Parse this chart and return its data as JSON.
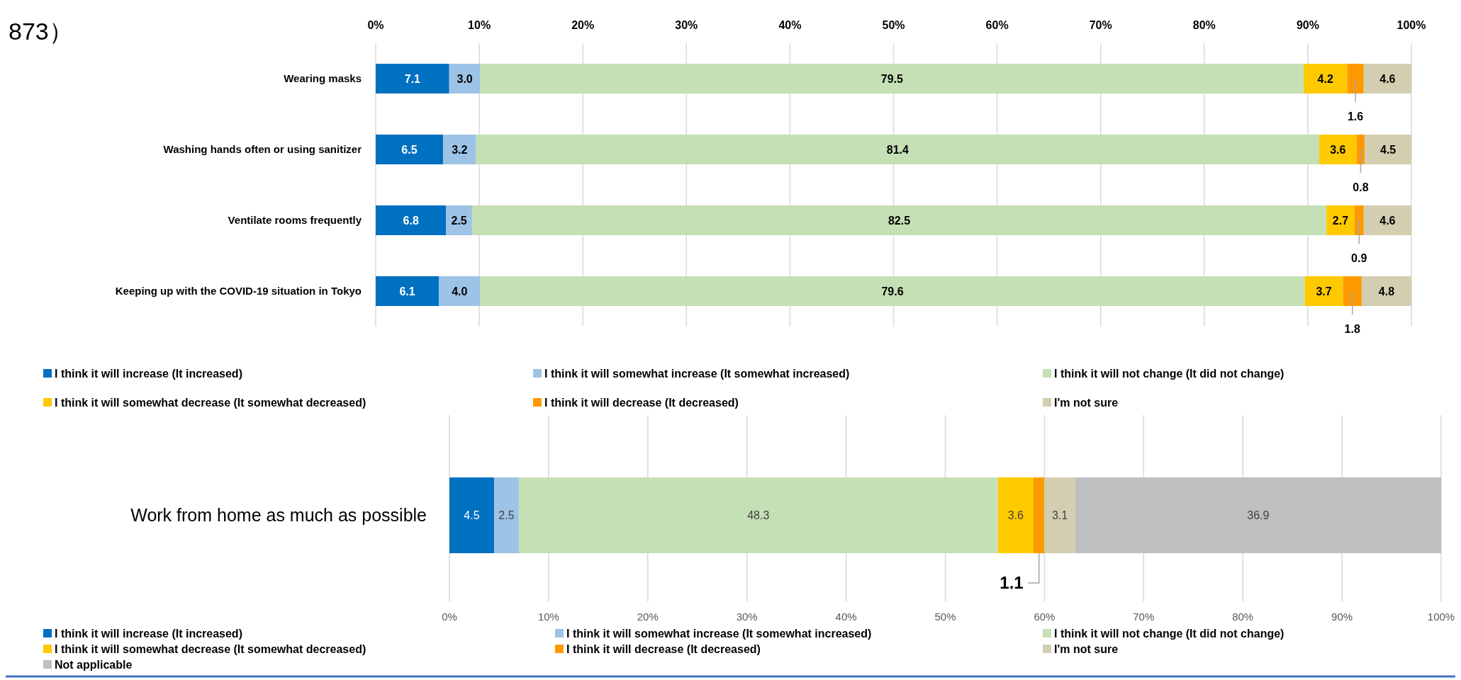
{
  "chart_data": [
    {
      "type": "bar",
      "title": "873）",
      "orientation": "horizontal",
      "stacked": true,
      "grid": "x",
      "legend": "bottom",
      "categories": [
        "Wearing masks",
        "Washing hands often or using sanitizer",
        "Ventilate rooms frequently",
        "Keeping up with the COVID-19 situation in Tokyo"
      ],
      "xlim": [
        0,
        100
      ],
      "xticks": [
        {
          "value": 0,
          "label": "0%"
        },
        {
          "value": 10,
          "label": "10%"
        },
        {
          "value": 20,
          "label": "20%"
        },
        {
          "value": 30,
          "label": "30%"
        },
        {
          "value": 40,
          "label": "40%"
        },
        {
          "value": 50,
          "label": "50%"
        },
        {
          "value": 60,
          "label": "60%"
        },
        {
          "value": 70,
          "label": "70%"
        },
        {
          "value": 80,
          "label": "80%"
        },
        {
          "value": 90,
          "label": "90%"
        },
        {
          "value": 100,
          "label": "100%"
        }
      ],
      "series": [
        {
          "name": "I think it will increase (It increased)",
          "color": "#0070c0",
          "values": [
            7.1,
            6.5,
            6.8,
            6.1
          ],
          "value_labels": [
            "7.1",
            "6.5",
            "6.8",
            "6.1"
          ]
        },
        {
          "name": "I think it will somewhat increase (It somewhat increased)",
          "color": "#9dc3e6",
          "values": [
            3.0,
            3.2,
            2.5,
            4.0
          ],
          "value_labels": [
            "3.0",
            "3.2",
            "2.5",
            "4.0"
          ]
        },
        {
          "name": "I think it will not change (It did not change)",
          "color": "#c5e0b4",
          "values": [
            79.5,
            81.4,
            82.5,
            79.6
          ],
          "value_labels": [
            "79.5",
            "81.4",
            "82.5",
            "79.6"
          ]
        },
        {
          "name": "I think it will somewhat decrease (It somewhat decreased)",
          "color": "#ffc900",
          "values": [
            4.2,
            3.6,
            2.7,
            3.7
          ],
          "value_labels": [
            "4.2",
            "3.6",
            "2.7",
            "3.7"
          ]
        },
        {
          "name": "I think it will decrease (It decreased)",
          "color": "#ff9900",
          "values": [
            1.6,
            0.8,
            0.9,
            1.8
          ],
          "value_labels": [
            "1.6",
            "0.8",
            "0.9",
            "1.8"
          ]
        },
        {
          "name": "I'm not sure",
          "color": "#d3ceb0",
          "values": [
            4.6,
            4.5,
            4.6,
            4.8
          ],
          "value_labels": [
            "4.6",
            "4.5",
            "4.6",
            "4.8"
          ]
        }
      ]
    },
    {
      "type": "bar",
      "orientation": "horizontal",
      "stacked": true,
      "grid": "x",
      "legend": "bottom",
      "categories": [
        "Work from home as much as possible"
      ],
      "xlim": [
        0,
        100
      ],
      "xticks": [
        {
          "value": 0,
          "label": "0%"
        },
        {
          "value": 10,
          "label": "10%"
        },
        {
          "value": 20,
          "label": "20%"
        },
        {
          "value": 30,
          "label": "30%"
        },
        {
          "value": 40,
          "label": "40%"
        },
        {
          "value": 50,
          "label": "50%"
        },
        {
          "value": 60,
          "label": "60%"
        },
        {
          "value": 70,
          "label": "70%"
        },
        {
          "value": 80,
          "label": "80%"
        },
        {
          "value": 90,
          "label": "90%"
        },
        {
          "value": 100,
          "label": "100%"
        }
      ],
      "series": [
        {
          "name": "I think it will increase (It increased)",
          "color": "#0070c0",
          "values": [
            4.5
          ],
          "value_labels": [
            "4.5"
          ]
        },
        {
          "name": "I think it will somewhat increase (It somewhat increased)",
          "color": "#9dc3e6",
          "values": [
            2.5
          ],
          "value_labels": [
            "2.5"
          ]
        },
        {
          "name": "I think it will not change (It did not change)",
          "color": "#c5e0b4",
          "values": [
            48.3
          ],
          "value_labels": [
            "48.3"
          ]
        },
        {
          "name": "I think it will somewhat decrease (It somewhat decreased)",
          "color": "#ffc900",
          "values": [
            3.6
          ],
          "value_labels": [
            "3.6"
          ]
        },
        {
          "name": "I think it will decrease (It decreased)",
          "color": "#ff9900",
          "values": [
            1.1
          ],
          "value_labels": [
            "1.1"
          ]
        },
        {
          "name": "I'm not sure",
          "color": "#d3ceb0",
          "values": [
            3.1
          ],
          "value_labels": [
            "3.1"
          ]
        },
        {
          "name": "Not applicable",
          "color": "#bfbfbf",
          "values": [
            36.9
          ],
          "value_labels": [
            "36.9"
          ]
        }
      ]
    }
  ]
}
